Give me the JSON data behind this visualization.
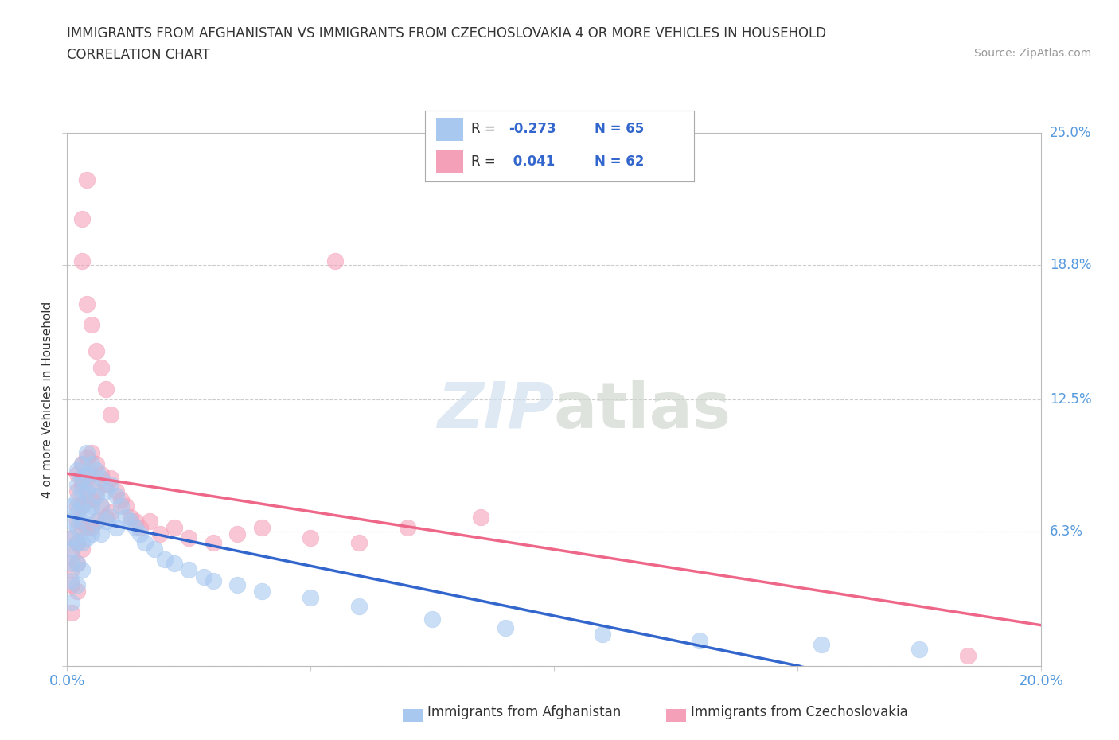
{
  "title_line1": "IMMIGRANTS FROM AFGHANISTAN VS IMMIGRANTS FROM CZECHOSLOVAKIA 4 OR MORE VEHICLES IN HOUSEHOLD",
  "title_line2": "CORRELATION CHART",
  "source_text": "Source: ZipAtlas.com",
  "ylabel": "4 or more Vehicles in Household",
  "xlim": [
    0.0,
    0.2
  ],
  "ylim": [
    0.0,
    0.25
  ],
  "afghanistan_color": "#A8C8F0",
  "czechoslovakia_color": "#F4A0B8",
  "afghanistan_line_color": "#3366CC",
  "czechoslovakia_line_color": "#EE6688",
  "r_afghanistan": -0.273,
  "n_afghanistan": 65,
  "r_czechoslovakia": 0.041,
  "n_czechoslovakia": 62,
  "background_color": "#FFFFFF",
  "afghanistan_x": [
    0.001,
    0.001,
    0.001,
    0.001,
    0.001,
    0.001,
    0.001,
    0.002,
    0.002,
    0.002,
    0.002,
    0.002,
    0.002,
    0.002,
    0.002,
    0.003,
    0.003,
    0.003,
    0.003,
    0.003,
    0.003,
    0.003,
    0.004,
    0.004,
    0.004,
    0.004,
    0.004,
    0.005,
    0.005,
    0.005,
    0.005,
    0.006,
    0.006,
    0.006,
    0.007,
    0.007,
    0.007,
    0.008,
    0.008,
    0.009,
    0.009,
    0.01,
    0.01,
    0.011,
    0.012,
    0.013,
    0.014,
    0.015,
    0.016,
    0.018,
    0.02,
    0.022,
    0.025,
    0.028,
    0.03,
    0.035,
    0.04,
    0.05,
    0.06,
    0.075,
    0.09,
    0.11,
    0.13,
    0.155,
    0.175
  ],
  "afghanistan_y": [
    0.075,
    0.068,
    0.06,
    0.055,
    0.048,
    0.04,
    0.03,
    0.092,
    0.085,
    0.078,
    0.072,
    0.065,
    0.058,
    0.048,
    0.038,
    0.095,
    0.088,
    0.082,
    0.075,
    0.068,
    0.058,
    0.045,
    0.1,
    0.09,
    0.082,
    0.072,
    0.06,
    0.095,
    0.085,
    0.075,
    0.062,
    0.092,
    0.08,
    0.068,
    0.088,
    0.075,
    0.062,
    0.082,
    0.068,
    0.085,
    0.07,
    0.08,
    0.065,
    0.075,
    0.07,
    0.068,
    0.065,
    0.062,
    0.058,
    0.055,
    0.05,
    0.048,
    0.045,
    0.042,
    0.04,
    0.038,
    0.035,
    0.032,
    0.028,
    0.022,
    0.018,
    0.015,
    0.012,
    0.01,
    0.008
  ],
  "czechoslovakia_x": [
    0.001,
    0.001,
    0.001,
    0.001,
    0.001,
    0.002,
    0.002,
    0.002,
    0.002,
    0.002,
    0.002,
    0.002,
    0.003,
    0.003,
    0.003,
    0.003,
    0.003,
    0.004,
    0.004,
    0.004,
    0.004,
    0.005,
    0.005,
    0.005,
    0.005,
    0.006,
    0.006,
    0.006,
    0.007,
    0.007,
    0.008,
    0.008,
    0.009,
    0.009,
    0.01,
    0.011,
    0.012,
    0.013,
    0.014,
    0.015,
    0.017,
    0.019,
    0.022,
    0.025,
    0.03,
    0.035,
    0.04,
    0.05,
    0.06,
    0.07,
    0.085,
    0.003,
    0.004,
    0.005,
    0.006,
    0.007,
    0.008,
    0.009,
    0.055,
    0.003,
    0.004,
    0.185
  ],
  "czechoslovakia_y": [
    0.06,
    0.052,
    0.045,
    0.038,
    0.025,
    0.09,
    0.082,
    0.075,
    0.068,
    0.058,
    0.048,
    0.035,
    0.095,
    0.085,
    0.075,
    0.065,
    0.055,
    0.098,
    0.088,
    0.078,
    0.065,
    0.1,
    0.09,
    0.078,
    0.065,
    0.095,
    0.082,
    0.068,
    0.09,
    0.075,
    0.085,
    0.07,
    0.088,
    0.072,
    0.082,
    0.078,
    0.075,
    0.07,
    0.068,
    0.065,
    0.068,
    0.062,
    0.065,
    0.06,
    0.058,
    0.062,
    0.065,
    0.06,
    0.058,
    0.065,
    0.07,
    0.19,
    0.17,
    0.16,
    0.148,
    0.14,
    0.13,
    0.118,
    0.19,
    0.21,
    0.228,
    0.005
  ]
}
